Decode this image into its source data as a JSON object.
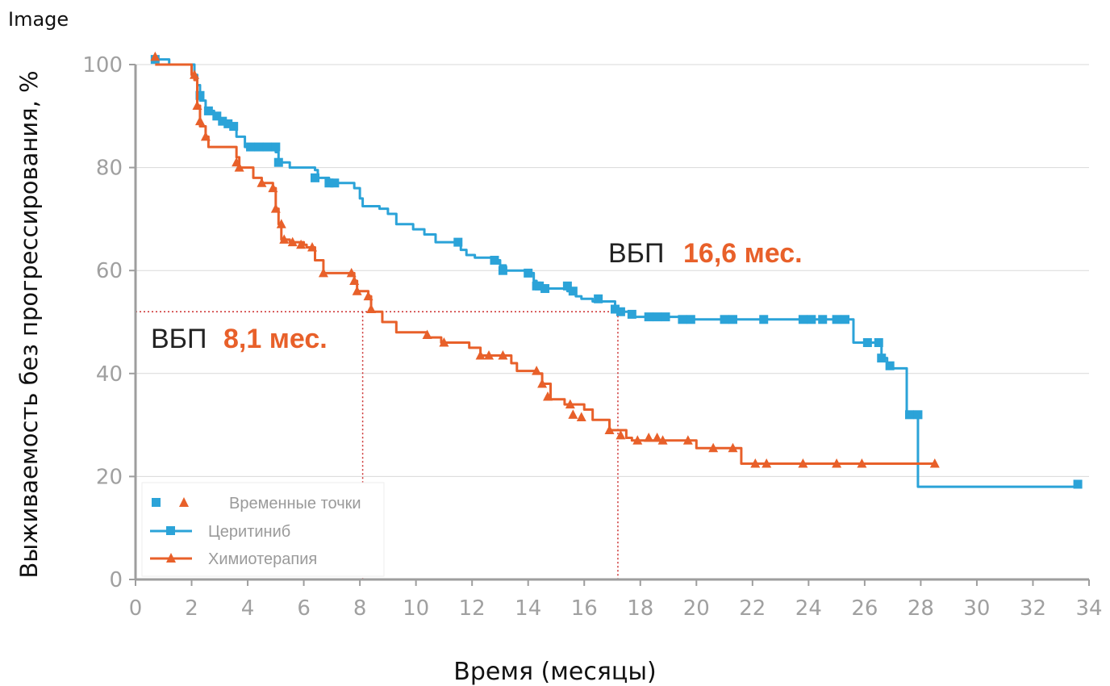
{
  "header": {
    "tag": "Image"
  },
  "chart_data": {
    "type": "line",
    "xlabel": "Время (месяцы)",
    "ylabel": "Выживаемость без прогрессирования, %",
    "xlim": [
      0,
      34
    ],
    "ylim": [
      0,
      100
    ],
    "xticks": [
      0,
      2,
      4,
      6,
      8,
      10,
      12,
      14,
      16,
      18,
      20,
      22,
      24,
      26,
      28,
      30,
      32,
      34
    ],
    "yticks": [
      0,
      20,
      40,
      60,
      80,
      100
    ],
    "grid": "horizontal",
    "legend_position": "bottom-left",
    "legend": {
      "markers_label": "Временные точки",
      "items": [
        "Церитиниб",
        "Химиотерапия"
      ]
    },
    "series": [
      {
        "name": "Церитиниб",
        "color": "#2ba3d8",
        "marker": "square",
        "step": [
          [
            0.7,
            101
          ],
          [
            1.0,
            101
          ],
          [
            1.2,
            100
          ],
          [
            2.0,
            100
          ],
          [
            2.1,
            98
          ],
          [
            2.2,
            96
          ],
          [
            2.3,
            93
          ],
          [
            2.5,
            91
          ],
          [
            2.8,
            90
          ],
          [
            3.0,
            89
          ],
          [
            3.3,
            88.5
          ],
          [
            3.5,
            88
          ],
          [
            3.6,
            86
          ],
          [
            3.9,
            84
          ],
          [
            5.0,
            83
          ],
          [
            5.1,
            81
          ],
          [
            5.5,
            80
          ],
          [
            6.4,
            79.5
          ],
          [
            6.5,
            78
          ],
          [
            6.9,
            77
          ],
          [
            7.8,
            76
          ],
          [
            8.0,
            74
          ],
          [
            8.1,
            72.5
          ],
          [
            8.7,
            72
          ],
          [
            9.0,
            71
          ],
          [
            9.3,
            69
          ],
          [
            9.9,
            68
          ],
          [
            10.3,
            67
          ],
          [
            10.7,
            65.5
          ],
          [
            11.5,
            65
          ],
          [
            11.6,
            64
          ],
          [
            11.8,
            63
          ],
          [
            12.1,
            62.5
          ],
          [
            12.7,
            62
          ],
          [
            13.0,
            61
          ],
          [
            13.2,
            60
          ],
          [
            14.0,
            59.5
          ],
          [
            14.2,
            58
          ],
          [
            14.3,
            56.5
          ],
          [
            15.4,
            56
          ],
          [
            15.7,
            55
          ],
          [
            15.9,
            54.5
          ],
          [
            16.3,
            54
          ],
          [
            17.1,
            52
          ],
          [
            17.5,
            52
          ],
          [
            17.8,
            51
          ],
          [
            19.5,
            50.5
          ],
          [
            19.8,
            50.5
          ],
          [
            20.8,
            50.5
          ],
          [
            21.5,
            50.5
          ],
          [
            25.5,
            50.5
          ],
          [
            25.6,
            46
          ],
          [
            26.4,
            46
          ],
          [
            26.6,
            43
          ],
          [
            26.8,
            41
          ],
          [
            27.4,
            41
          ],
          [
            27.5,
            32
          ],
          [
            27.9,
            18
          ],
          [
            33.6,
            18
          ]
        ],
        "markers": [
          [
            0.7,
            101
          ],
          [
            2.3,
            94
          ],
          [
            2.6,
            91
          ],
          [
            2.9,
            90
          ],
          [
            3.1,
            89
          ],
          [
            3.3,
            88.5
          ],
          [
            3.5,
            88
          ],
          [
            4.1,
            84
          ],
          [
            4.4,
            84
          ],
          [
            4.7,
            84
          ],
          [
            5.0,
            84
          ],
          [
            5.1,
            81
          ],
          [
            6.4,
            78
          ],
          [
            6.9,
            77
          ],
          [
            7.1,
            77
          ],
          [
            11.5,
            65.5
          ],
          [
            12.8,
            62
          ],
          [
            13.1,
            60
          ],
          [
            14.0,
            59.5
          ],
          [
            14.3,
            57
          ],
          [
            14.4,
            57
          ],
          [
            14.6,
            56.5
          ],
          [
            15.4,
            57
          ],
          [
            15.6,
            56
          ],
          [
            16.5,
            54.5
          ],
          [
            17.1,
            52.5
          ],
          [
            17.3,
            52
          ],
          [
            17.7,
            51.5
          ],
          [
            18.3,
            51
          ],
          [
            18.6,
            51
          ],
          [
            18.9,
            51
          ],
          [
            19.5,
            50.5
          ],
          [
            19.8,
            50.5
          ],
          [
            21.0,
            50.5
          ],
          [
            21.3,
            50.5
          ],
          [
            22.4,
            50.5
          ],
          [
            23.8,
            50.5
          ],
          [
            24.1,
            50.5
          ],
          [
            24.5,
            50.5
          ],
          [
            25.0,
            50.5
          ],
          [
            25.3,
            50.5
          ],
          [
            26.1,
            46
          ],
          [
            26.5,
            46
          ],
          [
            26.6,
            43
          ],
          [
            26.9,
            41.5
          ],
          [
            27.6,
            32
          ],
          [
            27.9,
            32
          ],
          [
            33.6,
            18.5
          ]
        ]
      },
      {
        "name": "Химиотерапия",
        "color": "#e8602a",
        "marker": "triangle",
        "step": [
          [
            0.7,
            100
          ],
          [
            1.9,
            100
          ],
          [
            2.0,
            98
          ],
          [
            2.1,
            97
          ],
          [
            2.2,
            92
          ],
          [
            2.3,
            88
          ],
          [
            2.5,
            86
          ],
          [
            2.6,
            84
          ],
          [
            3.5,
            84
          ],
          [
            3.6,
            82
          ],
          [
            3.7,
            80
          ],
          [
            4.2,
            78
          ],
          [
            4.5,
            77
          ],
          [
            4.9,
            76
          ],
          [
            5.0,
            72
          ],
          [
            5.1,
            69
          ],
          [
            5.2,
            66
          ],
          [
            5.5,
            65.5
          ],
          [
            6.0,
            65
          ],
          [
            6.1,
            64.5
          ],
          [
            6.4,
            62
          ],
          [
            6.7,
            59.5
          ],
          [
            7.7,
            59.5
          ],
          [
            7.8,
            58
          ],
          [
            7.9,
            56
          ],
          [
            8.3,
            55
          ],
          [
            8.4,
            52
          ],
          [
            8.8,
            50
          ],
          [
            9.3,
            48
          ],
          [
            10.4,
            47
          ],
          [
            10.9,
            46
          ],
          [
            11.9,
            45
          ],
          [
            12.3,
            43.5
          ],
          [
            13.4,
            42
          ],
          [
            13.6,
            40.5
          ],
          [
            14.3,
            40
          ],
          [
            14.5,
            38
          ],
          [
            14.8,
            35
          ],
          [
            15.3,
            34
          ],
          [
            16.0,
            33
          ],
          [
            16.3,
            31
          ],
          [
            16.9,
            29
          ],
          [
            17.5,
            27.5
          ],
          [
            17.7,
            27
          ],
          [
            19.9,
            27
          ],
          [
            20.0,
            25.5
          ],
          [
            21.5,
            25.5
          ],
          [
            21.6,
            22.5
          ],
          [
            28.5,
            22.5
          ]
        ],
        "markers": [
          [
            0.7,
            101.5
          ],
          [
            2.1,
            98
          ],
          [
            2.2,
            92
          ],
          [
            2.3,
            89
          ],
          [
            2.5,
            86
          ],
          [
            3.6,
            81
          ],
          [
            3.7,
            80
          ],
          [
            4.5,
            77
          ],
          [
            4.9,
            76
          ],
          [
            5.0,
            72
          ],
          [
            5.2,
            69
          ],
          [
            5.3,
            66
          ],
          [
            5.6,
            65.5
          ],
          [
            5.9,
            65
          ],
          [
            6.3,
            64.5
          ],
          [
            6.7,
            59.5
          ],
          [
            7.7,
            59.5
          ],
          [
            7.8,
            58
          ],
          [
            7.9,
            56
          ],
          [
            8.3,
            55
          ],
          [
            8.4,
            52.5
          ],
          [
            10.4,
            47.5
          ],
          [
            11.0,
            46
          ],
          [
            12.3,
            43.5
          ],
          [
            12.6,
            43.5
          ],
          [
            13.1,
            43.5
          ],
          [
            14.3,
            40.5
          ],
          [
            14.5,
            38
          ],
          [
            14.7,
            35.5
          ],
          [
            15.5,
            34
          ],
          [
            15.6,
            32
          ],
          [
            15.9,
            31.5
          ],
          [
            16.9,
            29
          ],
          [
            17.3,
            28
          ],
          [
            17.9,
            27
          ],
          [
            18.3,
            27.5
          ],
          [
            18.6,
            27.5
          ],
          [
            18.8,
            27
          ],
          [
            19.7,
            27
          ],
          [
            20.6,
            25.5
          ],
          [
            21.3,
            25.5
          ],
          [
            22.1,
            22.5
          ],
          [
            22.5,
            22.5
          ],
          [
            23.8,
            22.5
          ],
          [
            25.0,
            22.5
          ],
          [
            25.9,
            22.5
          ],
          [
            28.5,
            22.5
          ]
        ]
      }
    ],
    "reference_lines": [
      {
        "y": 52,
        "x_end": 17.2
      },
      {
        "x": 8.1,
        "y_top": 52
      },
      {
        "x": 17.2,
        "y_top": 52
      }
    ],
    "annotations": [
      {
        "prefix": "ВБП",
        "value": "8,1 мес."
      },
      {
        "prefix": "ВБП",
        "value": "16,6 мес."
      }
    ]
  }
}
